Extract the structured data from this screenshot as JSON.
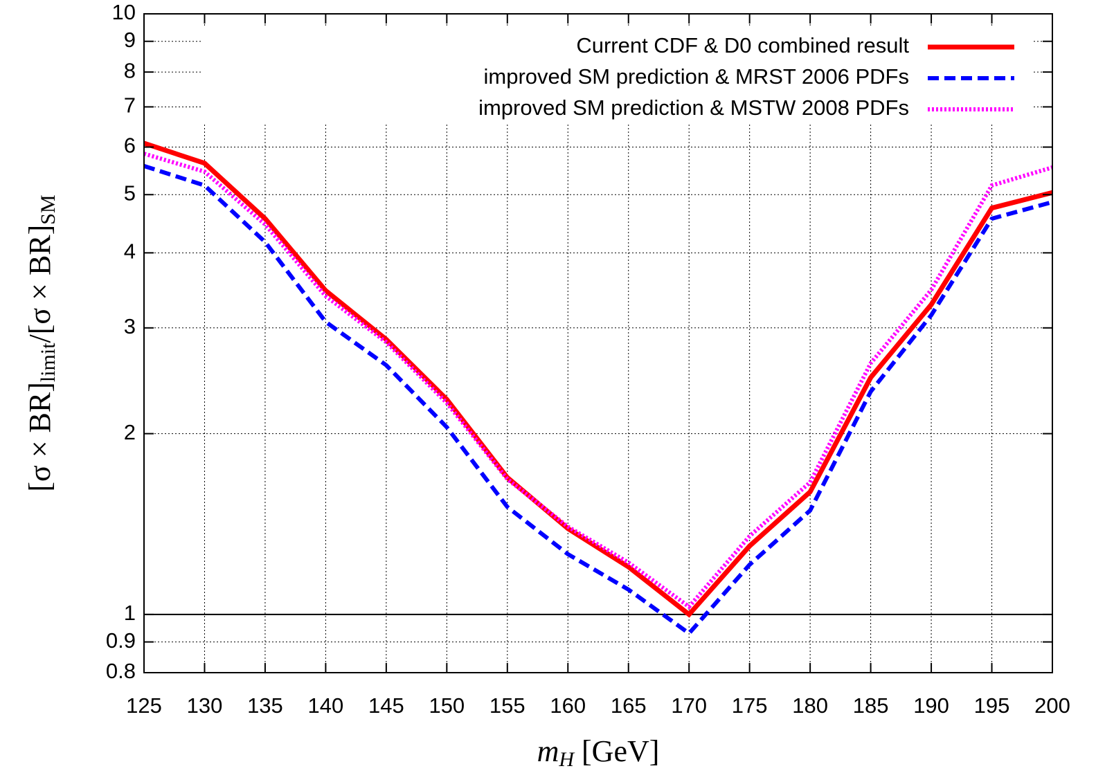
{
  "chart_data": {
    "type": "line",
    "x_label": [
      "m",
      "H",
      " [GeV]"
    ],
    "y_label": [
      "[σ × BR]",
      "limit",
      "/[σ × BR]",
      "SM"
    ],
    "x": [
      125,
      130,
      135,
      140,
      145,
      150,
      155,
      160,
      165,
      170,
      175,
      180,
      185,
      190,
      195,
      200
    ],
    "series": [
      {
        "name": "Current CDF & D0 combined result",
        "color": "#ff0000",
        "style": "solid",
        "values": [
          6.09,
          5.64,
          4.56,
          3.46,
          2.87,
          2.28,
          1.69,
          1.39,
          1.2,
          1.0,
          1.3,
          1.6,
          2.48,
          3.28,
          4.75,
          5.04
        ]
      },
      {
        "name": "improved SM prediction & MRST 2006 PDFs",
        "color": "#0000ff",
        "style": "dashed",
        "values": [
          5.58,
          5.18,
          4.17,
          3.07,
          2.6,
          2.05,
          1.51,
          1.26,
          1.1,
          0.93,
          1.21,
          1.49,
          2.35,
          3.15,
          4.56,
          4.86
        ]
      },
      {
        "name": "improved SM prediction & MSTW 2008 PDFs",
        "color": "#ff00ff",
        "style": "dotted",
        "values": [
          5.85,
          5.46,
          4.46,
          3.39,
          2.84,
          2.25,
          1.68,
          1.4,
          1.22,
          1.03,
          1.35,
          1.66,
          2.62,
          3.47,
          5.18,
          5.55
        ]
      }
    ],
    "xlim": [
      125,
      200
    ],
    "xticks": [
      125,
      130,
      135,
      140,
      145,
      150,
      155,
      160,
      165,
      170,
      175,
      180,
      185,
      190,
      195,
      200
    ],
    "ylim": [
      0.8,
      10
    ],
    "yticks": [
      0.8,
      0.9,
      1,
      2,
      3,
      4,
      5,
      6,
      7,
      8,
      9,
      10
    ],
    "y_log": true,
    "grid": true,
    "reference_line": 1,
    "legend": "top right"
  }
}
